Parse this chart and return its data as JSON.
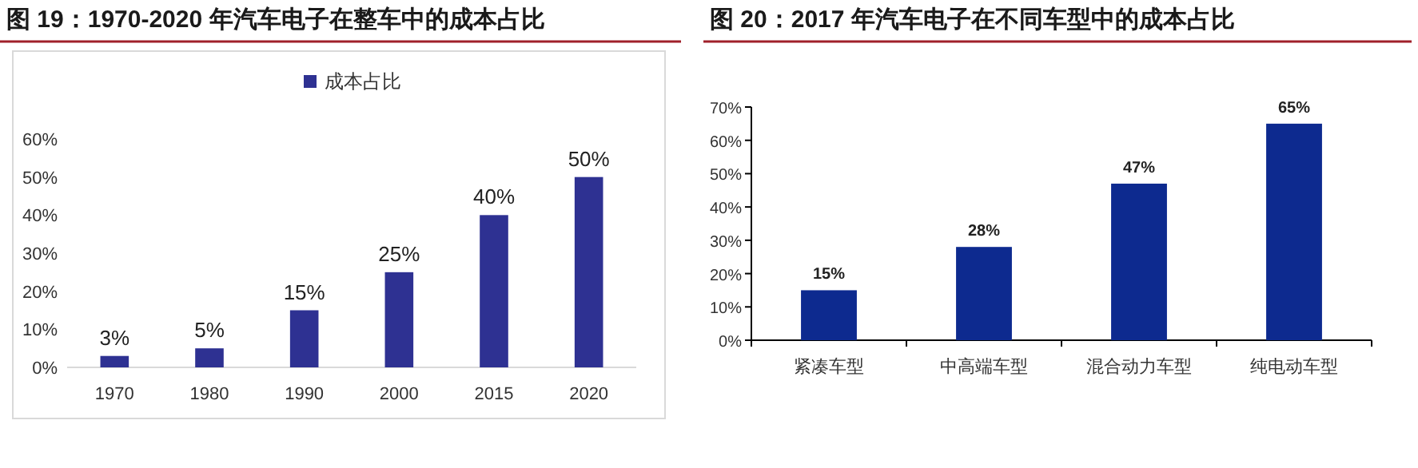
{
  "chart_data": [
    {
      "type": "bar",
      "title": "图 19：1970-2020 年汽车电子在整车中的成本占比",
      "categories": [
        "1970",
        "1980",
        "1990",
        "2000",
        "2015",
        "2020"
      ],
      "series": [
        {
          "name": "成本占比",
          "color": "#2e3192",
          "values": [
            3,
            5,
            15,
            25,
            40,
            50
          ]
        }
      ],
      "value_labels": [
        "3%",
        "5%",
        "15%",
        "25%",
        "40%",
        "50%"
      ],
      "ylim": [
        0,
        60
      ],
      "yticks": [
        {
          "value": 0,
          "label": "0%"
        },
        {
          "value": 10,
          "label": "10%"
        },
        {
          "value": 20,
          "label": "20%"
        },
        {
          "value": 30,
          "label": "30%"
        },
        {
          "value": 40,
          "label": "40%"
        },
        {
          "value": 50,
          "label": "50%"
        },
        {
          "value": 60,
          "label": "60%"
        }
      ],
      "legend": "top",
      "grid": false
    },
    {
      "type": "bar",
      "title": "图 20：2017 年汽车电子在不同车型中的成本占比",
      "categories": [
        "紧凑车型",
        "中高端车型",
        "混合动力车型",
        "纯电动车型"
      ],
      "series": [
        {
          "color": "#0d2a8f",
          "values": [
            15,
            28,
            47,
            65
          ]
        }
      ],
      "value_labels": [
        "15%",
        "28%",
        "47%",
        "65%"
      ],
      "ylim": [
        0,
        70
      ],
      "yticks": [
        {
          "value": 0,
          "label": "0%"
        },
        {
          "value": 10,
          "label": "10%"
        },
        {
          "value": 20,
          "label": "20%"
        },
        {
          "value": 30,
          "label": "30%"
        },
        {
          "value": 40,
          "label": "40%"
        },
        {
          "value": 50,
          "label": "50%"
        },
        {
          "value": 60,
          "label": "60%"
        },
        {
          "value": 70,
          "label": "70%"
        }
      ],
      "grid": false
    }
  ]
}
